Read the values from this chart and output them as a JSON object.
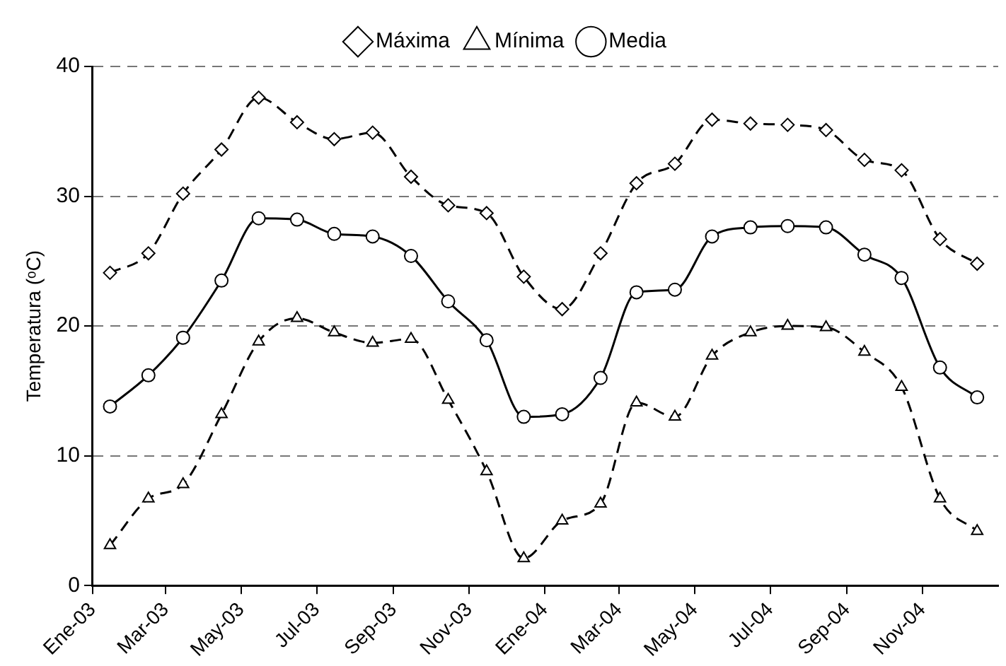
{
  "chart_data": {
    "type": "line",
    "ylabel": "Temperatura (ᵒC)",
    "x": [
      "2003-01-15",
      "2003-02-15",
      "2003-03-15",
      "2003-04-15",
      "2003-05-15",
      "2003-06-15",
      "2003-07-15",
      "2003-08-15",
      "2003-09-15",
      "2003-10-15",
      "2003-11-15",
      "2003-12-15",
      "2004-01-15",
      "2004-02-15",
      "2004-03-15",
      "2004-04-15",
      "2004-05-15",
      "2004-06-15",
      "2004-07-15",
      "2004-08-15",
      "2004-09-15",
      "2004-10-15",
      "2004-11-15",
      "2004-12-15"
    ],
    "series": [
      {
        "name": "Máxima",
        "color": "#000000",
        "marker": "diamond",
        "line_style": "dashed",
        "values": [
          24.1,
          25.6,
          30.2,
          33.6,
          37.6,
          35.7,
          34.4,
          34.9,
          31.5,
          29.3,
          28.7,
          23.8,
          21.3,
          25.6,
          31.0,
          32.5,
          35.9,
          35.6,
          35.5,
          35.1,
          32.8,
          32.0,
          26.7,
          24.8
        ]
      },
      {
        "name": "Mínima",
        "color": "#000000",
        "marker": "triangle",
        "line_style": "dashed",
        "values": [
          3.1,
          6.7,
          7.8,
          13.2,
          18.8,
          20.6,
          19.5,
          18.7,
          19.0,
          14.3,
          8.8,
          2.1,
          5.0,
          6.3,
          14.1,
          13.0,
          17.7,
          19.5,
          20.0,
          19.9,
          18.0,
          15.3,
          6.7,
          4.2
        ]
      },
      {
        "name": "Media",
        "color": "#000000",
        "marker": "circle",
        "line_style": "solid",
        "values": [
          13.8,
          16.2,
          19.1,
          23.5,
          28.3,
          28.2,
          27.1,
          26.9,
          25.4,
          21.9,
          18.9,
          13.0,
          13.2,
          16.0,
          22.6,
          22.8,
          26.9,
          27.6,
          27.7,
          27.6,
          25.5,
          23.7,
          16.8,
          14.5
        ]
      }
    ],
    "xlim": [
      "2003-01",
      "2005-01"
    ],
    "xticks": [
      {
        "value": "2003-01",
        "label": "Ene-03"
      },
      {
        "value": "2003-03",
        "label": "Mar-03"
      },
      {
        "value": "2003-05",
        "label": "May-03"
      },
      {
        "value": "2003-07",
        "label": "Jul-03"
      },
      {
        "value": "2003-09",
        "label": "Sep-03"
      },
      {
        "value": "2003-11",
        "label": "Nov-03"
      },
      {
        "value": "2004-01",
        "label": "Ene-04"
      },
      {
        "value": "2004-03",
        "label": "Mar-04"
      },
      {
        "value": "2004-05",
        "label": "May-04"
      },
      {
        "value": "2004-07",
        "label": "Jul-04"
      },
      {
        "value": "2004-09",
        "label": "Sep-04"
      },
      {
        "value": "2004-11",
        "label": "Nov-04"
      }
    ],
    "ylim": [
      0,
      40
    ],
    "yticks": [
      0,
      10,
      20,
      30,
      40
    ],
    "grid": "y",
    "legend": "top"
  }
}
